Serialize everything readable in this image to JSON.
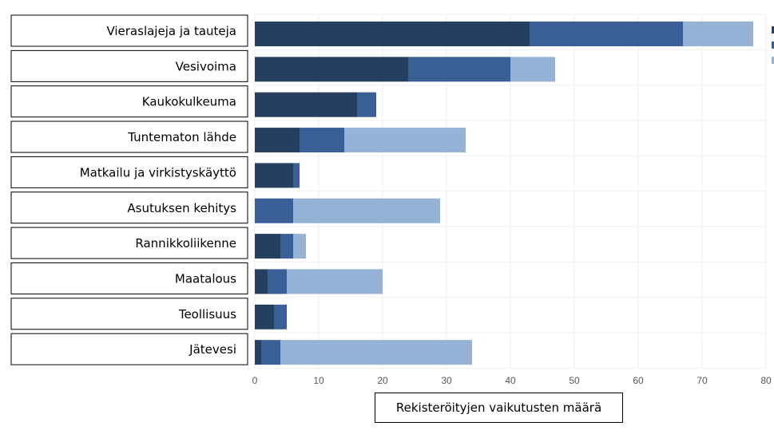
{
  "chart_data": {
    "type": "bar",
    "orientation": "horizontal",
    "stacked": true,
    "categories": [
      "Vieraslajeja ja tauteja",
      "Vesivoima",
      "Kaukokulkeuma",
      "Tuntematon lähde",
      "Matkailu ja virkistyskäyttö",
      "Asutuksen kehitys",
      "Rannikkoliikenne",
      "Maatalous",
      "Teollisuus",
      "Jätevesi"
    ],
    "series": [
      {
        "color": "#243f60",
        "values": [
          43,
          24,
          16,
          7,
          6,
          0,
          4,
          2,
          3,
          1
        ]
      },
      {
        "color": "#3a5f96",
        "values": [
          24,
          16,
          3,
          7,
          1,
          6,
          2,
          3,
          2,
          3
        ]
      },
      {
        "color": "#95b3d7",
        "values": [
          11,
          7,
          0,
          19,
          0,
          23,
          2,
          15,
          0,
          30
        ]
      }
    ],
    "xlabel": "Rekisteröityjen vaikutusten määrä",
    "xlim": [
      0,
      80
    ],
    "xticks": [
      "0",
      "10",
      "20",
      "30",
      "40",
      "50",
      "60",
      "70",
      "80"
    ],
    "grid": true,
    "legend": "top-right (clipped)"
  }
}
